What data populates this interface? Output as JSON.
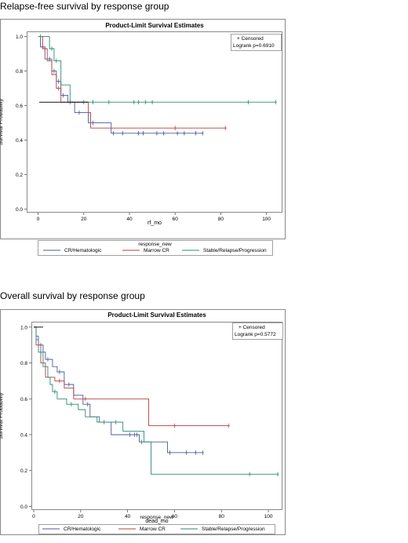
{
  "headings": [
    "Relapse-free survival by response group",
    "Overall survival by response group"
  ],
  "colors": {
    "CR/Hematologic": "#4a5a9c",
    "Marrow CR": "#b5413f",
    "Stable/Relapse/Progression": "#2e8a74",
    "black_overlap": "#111111",
    "frame": "#8a8a8a"
  },
  "chart_data": [
    {
      "type": "line",
      "step": true,
      "title": "Product-Limit Survival Estimates",
      "xlabel": "rf_mo",
      "ylabel": "Survival Probability",
      "xlim": [
        -5,
        107
      ],
      "ylim": [
        -0.02,
        1.03
      ],
      "xticks": [
        0,
        20,
        40,
        60,
        80,
        100
      ],
      "yticks": [
        0.0,
        0.2,
        0.4,
        0.6,
        0.8,
        1.0
      ],
      "ytick_labels": [
        "0.0",
        "0.2",
        "0.4",
        "0.6",
        "0.8",
        "1.0"
      ],
      "inset": {
        "censored_label": "+ Censored",
        "logrank_label": "Logrank p=0.6910"
      },
      "legend": {
        "title": "response_new",
        "position": "bottom"
      },
      "series": [
        {
          "name": "CR/Hematologic",
          "color": "#4a5a9c",
          "steps": [
            [
              0,
              1.0
            ],
            [
              1,
              0.94
            ],
            [
              3,
              0.87
            ],
            [
              6,
              0.8
            ],
            [
              8,
              0.74
            ],
            [
              10,
              0.66
            ],
            [
              13,
              0.62
            ],
            [
              16,
              0.56
            ],
            [
              22,
              0.5
            ],
            [
              32,
              0.44
            ],
            [
              72,
              0.44
            ]
          ],
          "censored": [
            [
              2,
              0.94
            ],
            [
              5,
              0.87
            ],
            [
              7,
              0.8
            ],
            [
              9,
              0.74
            ],
            [
              11,
              0.66
            ],
            [
              14,
              0.62
            ],
            [
              18,
              0.56
            ],
            [
              24,
              0.5
            ],
            [
              33,
              0.44
            ],
            [
              37,
              0.44
            ],
            [
              44,
              0.44
            ],
            [
              46,
              0.44
            ],
            [
              52,
              0.44
            ],
            [
              55,
              0.44
            ],
            [
              61,
              0.44
            ],
            [
              64,
              0.44
            ],
            [
              69,
              0.44
            ],
            [
              72,
              0.44
            ]
          ]
        },
        {
          "name": "Marrow CR",
          "color": "#b5413f",
          "steps": [
            [
              0,
              1.0
            ],
            [
              2,
              0.93
            ],
            [
              4,
              0.86
            ],
            [
              6,
              0.78
            ],
            [
              8,
              0.7
            ],
            [
              10,
              0.62
            ],
            [
              22,
              0.56
            ],
            [
              23,
              0.47
            ],
            [
              82,
              0.47
            ]
          ],
          "censored": [
            [
              3,
              0.93
            ],
            [
              9,
              0.7
            ],
            [
              60,
              0.47
            ],
            [
              82,
              0.47
            ]
          ]
        },
        {
          "name": "Stable/Relapse/Progression",
          "color": "#2e8a74",
          "steps": [
            [
              0,
              1.0
            ],
            [
              5,
              0.93
            ],
            [
              7,
              0.86
            ],
            [
              10,
              0.72
            ],
            [
              14,
              0.62
            ],
            [
              104,
              0.62
            ]
          ],
          "censored": [
            [
              1,
              1.0
            ],
            [
              6,
              0.93
            ],
            [
              8,
              0.86
            ],
            [
              20,
              0.62
            ],
            [
              24,
              0.62
            ],
            [
              31,
              0.62
            ],
            [
              42,
              0.62
            ],
            [
              44,
              0.62
            ],
            [
              47,
              0.62
            ],
            [
              50,
              0.62
            ],
            [
              92,
              0.62
            ],
            [
              104,
              0.62
            ]
          ]
        }
      ],
      "black_overlap": [
        [
          0.5,
          0.62
        ],
        [
          22,
          0.62
        ]
      ]
    },
    {
      "type": "line",
      "step": true,
      "title": "Product-Limit Survival Estimates",
      "xlabel": "dead_mo",
      "ylabel": "Survival Probability",
      "xlim": [
        -1,
        106
      ],
      "ylim": [
        -0.02,
        1.03
      ],
      "xticks": [
        0,
        20,
        40,
        60,
        80,
        100
      ],
      "yticks": [
        0.0,
        0.2,
        0.4,
        0.6,
        0.8,
        1.0
      ],
      "ytick_labels": [
        "0.0",
        "0.2",
        "0.4",
        "0.6",
        "0.8",
        "1.0"
      ],
      "inset": {
        "censored_label": "+ Censored",
        "logrank_label": "Logrank p=0.5772"
      },
      "legend": {
        "title": "response_new",
        "position": "bottom"
      },
      "series": [
        {
          "name": "CR/Hematologic",
          "color": "#4a5a9c",
          "steps": [
            [
              0,
              1.0
            ],
            [
              1,
              0.95
            ],
            [
              2,
              0.9
            ],
            [
              4,
              0.86
            ],
            [
              5,
              0.82
            ],
            [
              8,
              0.78
            ],
            [
              10,
              0.75
            ],
            [
              13,
              0.68
            ],
            [
              17,
              0.62
            ],
            [
              21,
              0.57
            ],
            [
              24,
              0.5
            ],
            [
              28,
              0.47
            ],
            [
              33,
              0.4
            ],
            [
              42,
              0.4
            ],
            [
              45,
              0.36
            ],
            [
              49,
              0.36
            ],
            [
              57,
              0.3
            ],
            [
              72,
              0.3
            ]
          ],
          "censored": [
            [
              3,
              0.9
            ],
            [
              6,
              0.82
            ],
            [
              11,
              0.75
            ],
            [
              15,
              0.68
            ],
            [
              23,
              0.57
            ],
            [
              30,
              0.47
            ],
            [
              41,
              0.4
            ],
            [
              43,
              0.4
            ],
            [
              44,
              0.4
            ],
            [
              58,
              0.3
            ],
            [
              65,
              0.3
            ],
            [
              69,
              0.3
            ],
            [
              72,
              0.3
            ]
          ]
        },
        {
          "name": "Marrow CR",
          "color": "#b5413f",
          "steps": [
            [
              0,
              1.0
            ],
            [
              1,
              0.9
            ],
            [
              3,
              0.8
            ],
            [
              5,
              0.72
            ],
            [
              9,
              0.7
            ],
            [
              13,
              0.66
            ],
            [
              17,
              0.6
            ],
            [
              49,
              0.45
            ],
            [
              83,
              0.45
            ]
          ],
          "censored": [
            [
              11,
              0.7
            ],
            [
              22,
              0.6
            ],
            [
              60,
              0.45
            ],
            [
              83,
              0.45
            ]
          ]
        },
        {
          "name": "Stable/Relapse/Progression",
          "color": "#2e8a74",
          "steps": [
            [
              0,
              1.0
            ],
            [
              1,
              0.93
            ],
            [
              2,
              0.86
            ],
            [
              4,
              0.78
            ],
            [
              6,
              0.72
            ],
            [
              7,
              0.68
            ],
            [
              8,
              0.64
            ],
            [
              10,
              0.6
            ],
            [
              14,
              0.57
            ],
            [
              19,
              0.54
            ],
            [
              22,
              0.5
            ],
            [
              27,
              0.47
            ],
            [
              38,
              0.42
            ],
            [
              47,
              0.36
            ],
            [
              50,
              0.18
            ],
            [
              104,
              0.18
            ]
          ],
          "censored": [
            [
              3,
              0.86
            ],
            [
              9,
              0.64
            ],
            [
              16,
              0.57
            ],
            [
              35,
              0.47
            ],
            [
              46,
              0.36
            ],
            [
              92,
              0.18
            ],
            [
              104,
              0.18
            ]
          ]
        }
      ],
      "black_overlap": [
        [
          0,
          1.0
        ],
        [
          4,
          1.0
        ]
      ]
    }
  ]
}
